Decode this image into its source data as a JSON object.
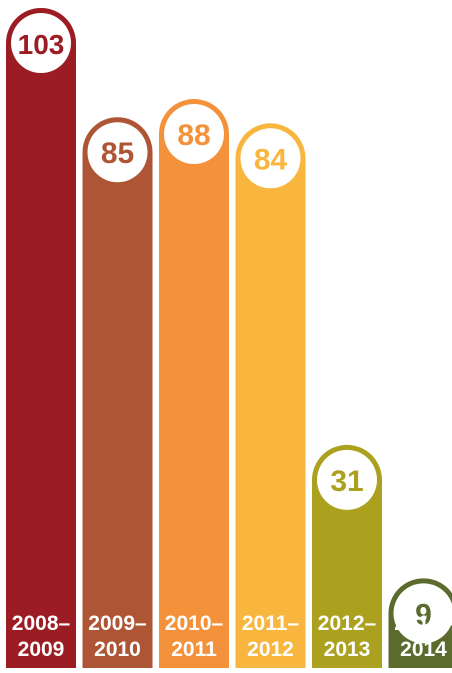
{
  "chart_data": {
    "type": "bar",
    "title": "",
    "xlabel": "",
    "ylabel": "",
    "ylim": [
      0,
      110
    ],
    "grid": false,
    "legend": "none",
    "categories": [
      {
        "line1": "2008–",
        "line2": "2009"
      },
      {
        "line1": "2009–",
        "line2": "2010"
      },
      {
        "line1": "2010–",
        "line2": "2011"
      },
      {
        "line1": "2011–",
        "line2": "2012"
      },
      {
        "line1": "2012–",
        "line2": "2013"
      },
      {
        "line1": "2013–",
        "line2": "2014"
      }
    ],
    "values": [
      103,
      85,
      88,
      84,
      31,
      9
    ],
    "value_labels": [
      "103",
      "85",
      "88",
      "84",
      "31",
      "9"
    ],
    "colors": [
      "#9b1c22",
      "#ae5535",
      "#f4923c",
      "#f9b63f",
      "#aba11f",
      "#5b6b2e"
    ],
    "label_color": "#ffffff",
    "background": "#ffffff"
  }
}
